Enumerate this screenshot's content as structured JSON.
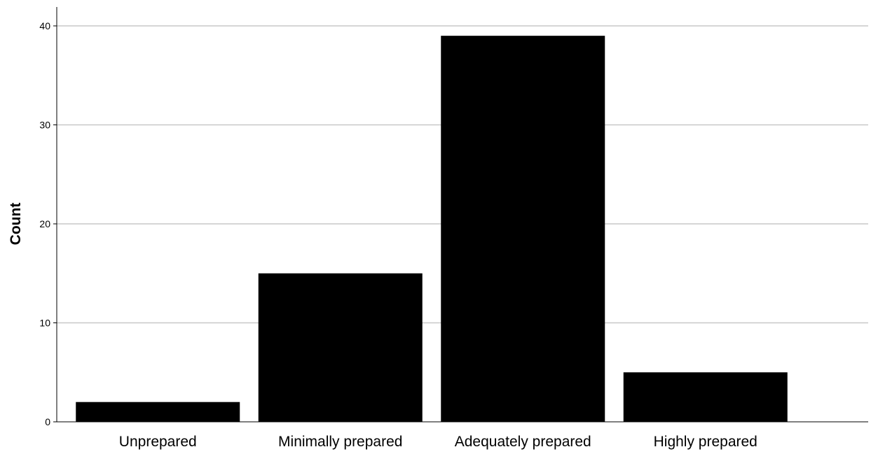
{
  "chart_data": {
    "type": "bar",
    "categories": [
      "Unprepared",
      "Minimally prepared",
      "Adequately prepared",
      "Highly prepared"
    ],
    "values": [
      2,
      15,
      39,
      5
    ],
    "title": "",
    "xlabel": "",
    "ylabel": "Count",
    "ylim": [
      0,
      42
    ],
    "yticks": [
      0,
      10,
      20,
      30,
      40
    ],
    "grid": "horizontal",
    "legend": "none",
    "bar_color": "#000000",
    "grid_color": "#c8c8c8"
  }
}
